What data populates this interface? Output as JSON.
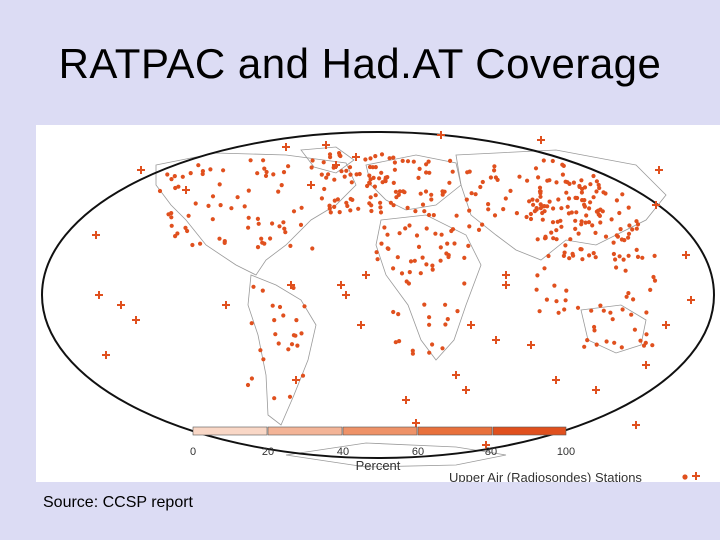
{
  "slide": {
    "title": "RATPAC and Had.AT Coverage",
    "source": "Source: CCSP report"
  },
  "colors": {
    "background": "#dcdcf4",
    "station": "#e0501e",
    "land_outline": "#9a9a9a",
    "ellipse": "#111111"
  },
  "legend": {
    "title": "Percent",
    "ticks": [
      "0",
      "20",
      "40",
      "60",
      "80",
      "100"
    ],
    "stations_label": "Upper Air (Radiosondes) Stations",
    "bin_colors": [
      "#f9d7c6",
      "#f3b497",
      "#ee9268",
      "#e8713c",
      "#e0501e"
    ]
  },
  "map": {
    "projection": "mollweide",
    "symbol_icons": [
      "dot-icon",
      "plus-icon"
    ]
  }
}
